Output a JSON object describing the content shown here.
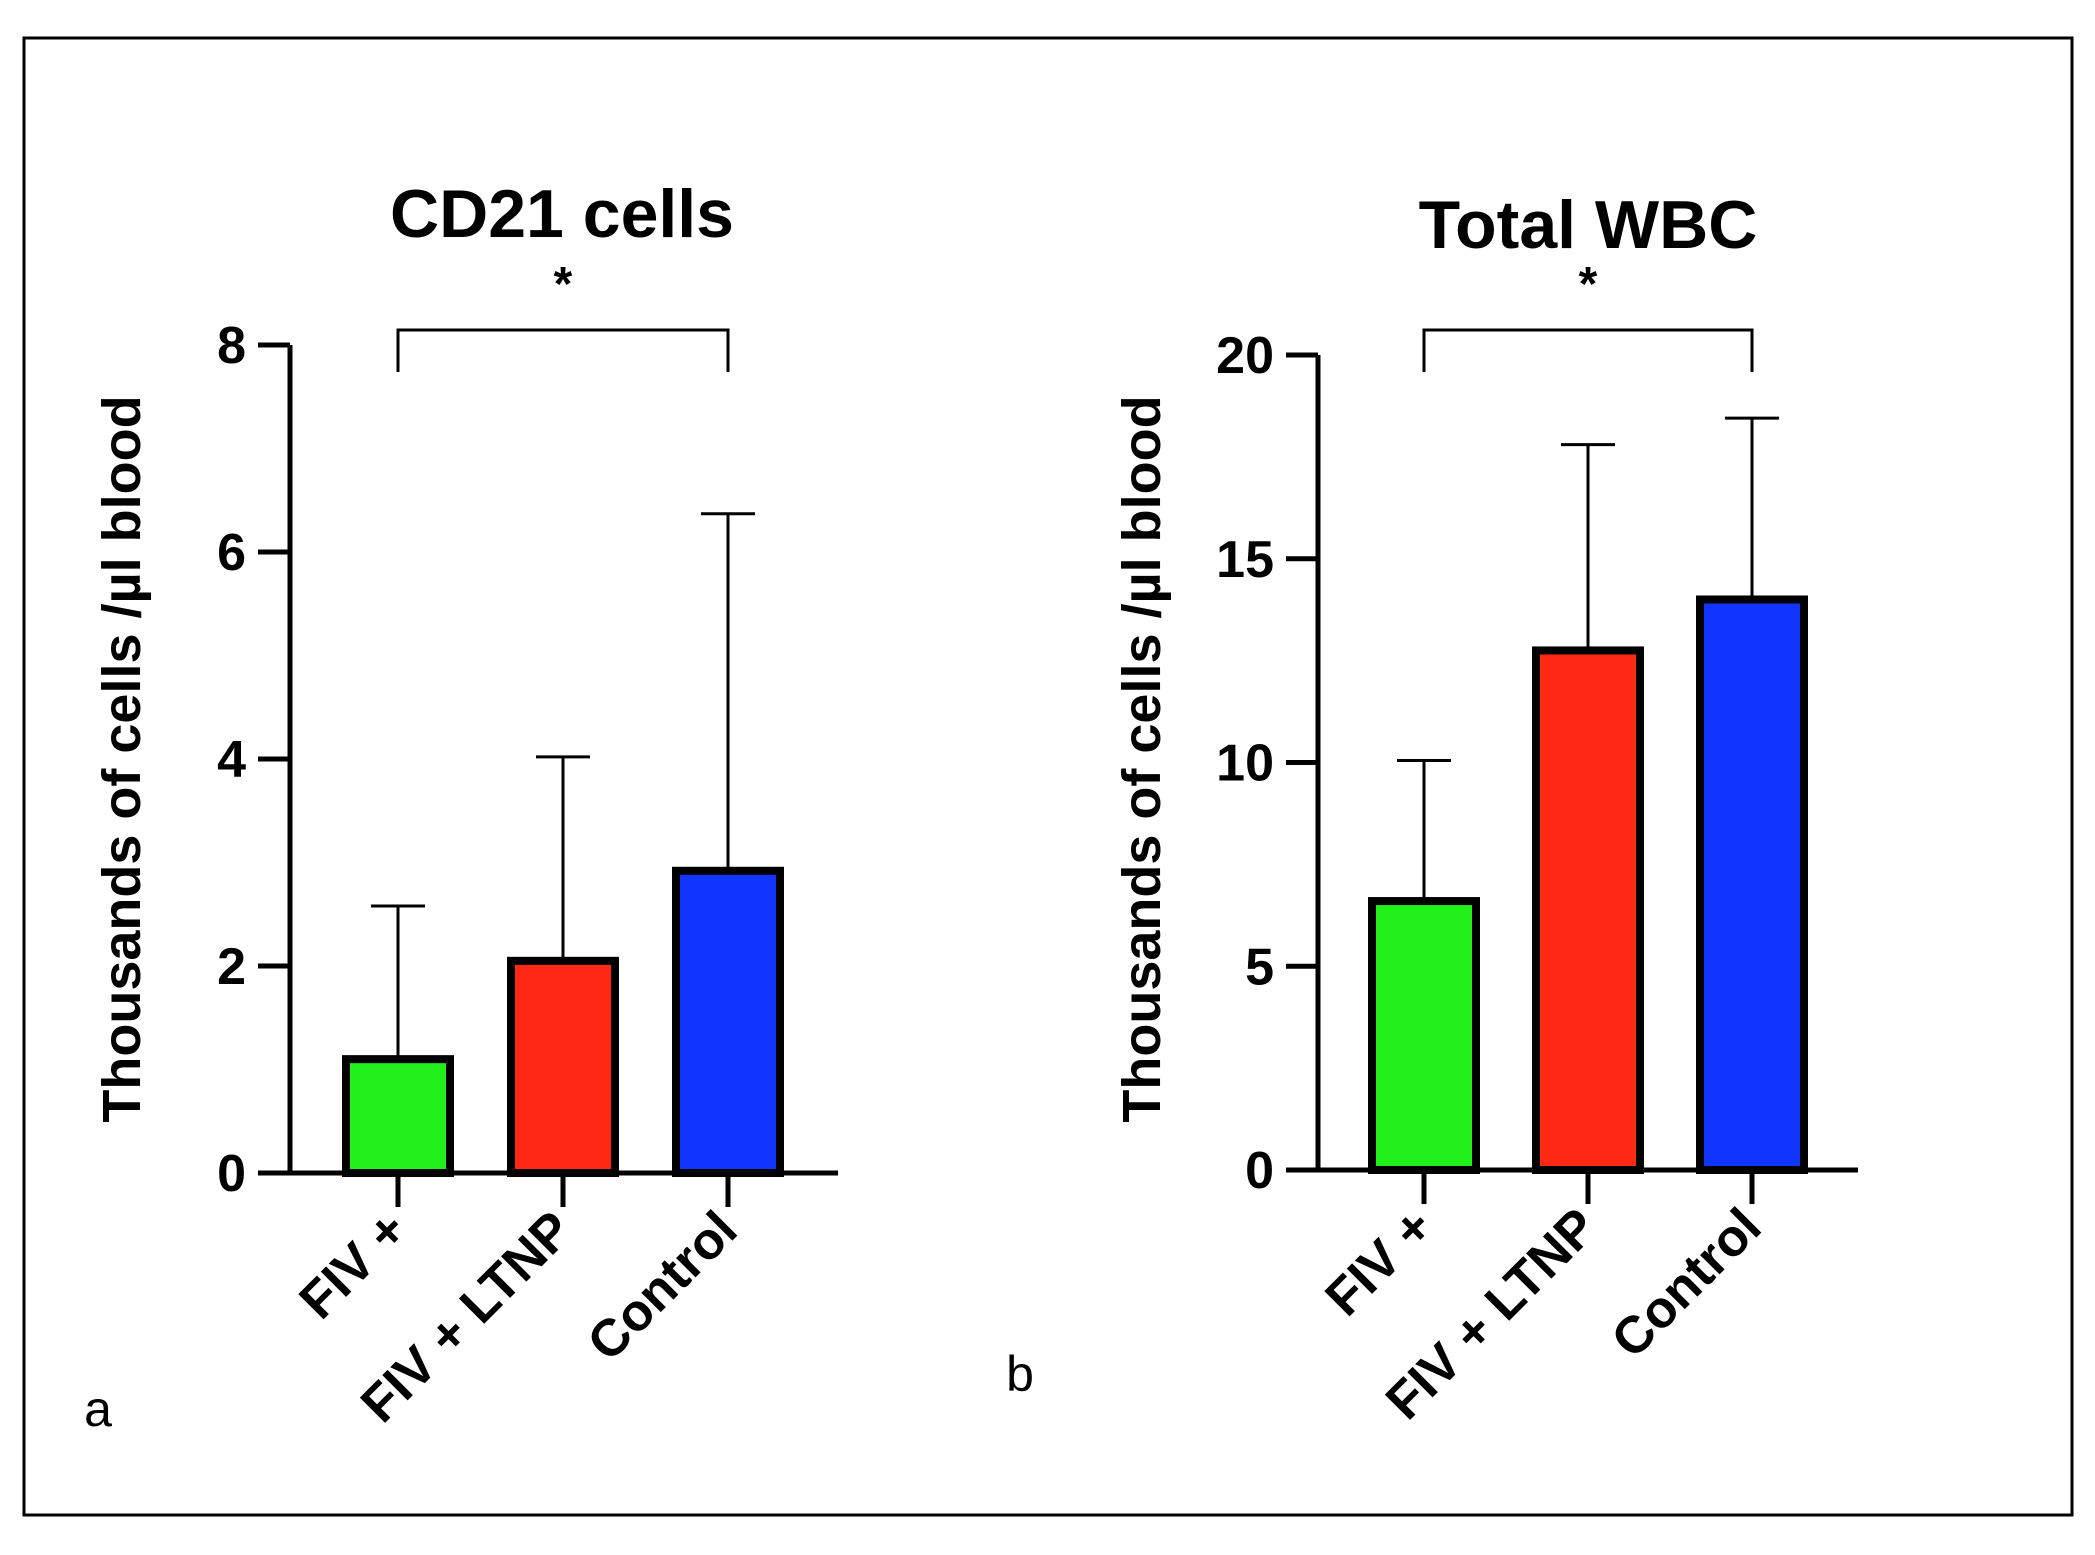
{
  "chart_data": [
    {
      "type": "bar",
      "panel": "a",
      "title": "CD21 cells",
      "xlabel": "",
      "ylabel": "Thousands of cells /µl blood",
      "categories": [
        "FIV +",
        "FIV + LTNP",
        "Control"
      ],
      "values": [
        1.1,
        2.05,
        2.92
      ],
      "error": [
        1.48,
        1.97,
        3.45
      ],
      "colors": [
        "#22f01a",
        "#ff2814",
        "#1234ff"
      ],
      "ylim": [
        0,
        8
      ],
      "yticks": [
        "0",
        "2",
        "4",
        "6",
        "8"
      ],
      "significance": {
        "from": "FIV +",
        "to": "Control",
        "label": "*"
      },
      "grid": false
    },
    {
      "type": "bar",
      "panel": "b",
      "title": "Total WBC",
      "xlabel": "",
      "ylabel": "Thousands of cells /µl blood",
      "categories": [
        "FIV +",
        "FIV + LTNP",
        "Control"
      ],
      "values": [
        6.6,
        12.75,
        14.0
      ],
      "error": [
        3.45,
        5.05,
        4.45
      ],
      "colors": [
        "#22f01a",
        "#ff2814",
        "#1234ff"
      ],
      "ylim": [
        0,
        20
      ],
      "yticks": [
        "0",
        "5",
        "10",
        "15",
        "20"
      ],
      "significance": {
        "from": "FIV +",
        "to": "Control",
        "label": "*"
      },
      "grid": false
    }
  ]
}
